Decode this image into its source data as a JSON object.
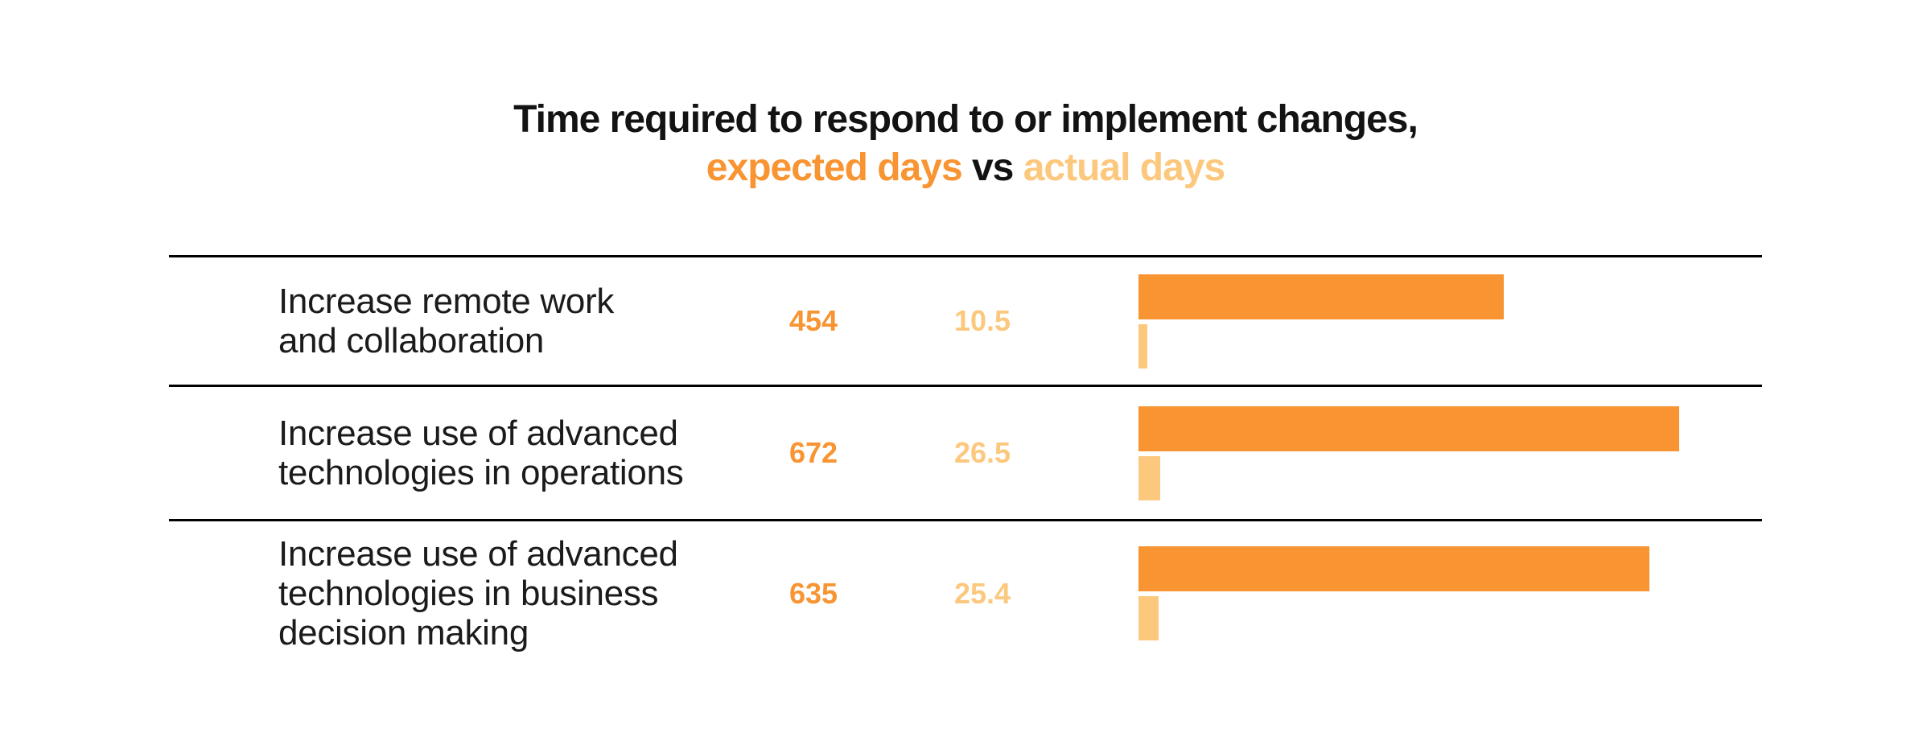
{
  "title": {
    "line1": "Time required to respond to or implement changes,",
    "expected_label": "expected days",
    "vs_label": "vs",
    "actual_label": "actual days"
  },
  "colors": {
    "expected": "#F89432",
    "actual": "#FCC87E",
    "title_text": "#131313",
    "rule": "#000000"
  },
  "rows": [
    {
      "label_lines": [
        "Increase remote work",
        "and collaboration"
      ],
      "expected": 454,
      "actual": 10.5
    },
    {
      "label_lines": [
        "Increase use of advanced",
        "technologies in operations"
      ],
      "expected": 672,
      "actual": 26.5
    },
    {
      "label_lines": [
        "Increase use of advanced",
        "technologies in business",
        "decision making"
      ],
      "expected": 635,
      "actual": 25.4
    }
  ],
  "chart_data": {
    "type": "bar",
    "orientation": "horizontal",
    "title": "Time required to respond to or implement changes, expected days vs actual days",
    "categories": [
      "Increase remote work and collaboration",
      "Increase use of advanced technologies in operations",
      "Increase use of advanced technologies in business decision making"
    ],
    "series": [
      {
        "name": "expected days",
        "values": [
          454,
          672,
          635
        ],
        "color": "#F89432"
      },
      {
        "name": "actual days",
        "values": [
          10.5,
          26.5,
          25.4
        ],
        "color": "#FCC87E"
      }
    ],
    "value_labels_shown": true,
    "xlim": [
      0,
      700
    ],
    "grid": false,
    "legend_position": "in-title"
  }
}
